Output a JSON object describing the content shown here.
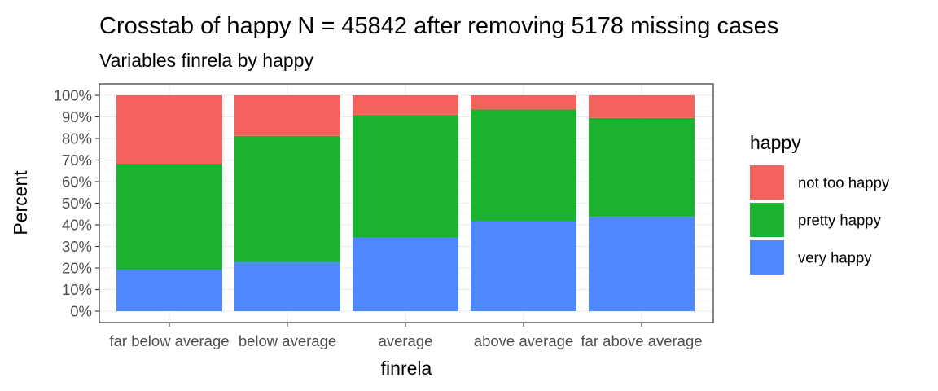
{
  "chart_data": {
    "type": "bar",
    "stacked": true,
    "title": "Crosstab of happy N = 45842 after removing 5178 missing cases",
    "subtitle": "Variables finrela by happy",
    "xlabel": "finrela",
    "ylabel": "Percent",
    "ylim": [
      0,
      100
    ],
    "y_ticks": [
      "0%",
      "10%",
      "20%",
      "30%",
      "40%",
      "50%",
      "60%",
      "70%",
      "80%",
      "90%",
      "100%"
    ],
    "categories": [
      "far below average",
      "below average",
      "average",
      "above average",
      "far above average"
    ],
    "series": [
      {
        "name": "very happy",
        "color": "#4f87ff",
        "values": [
          19.2,
          22.6,
          34.0,
          41.7,
          43.7
        ]
      },
      {
        "name": "pretty happy",
        "color": "#1ab22f",
        "values": [
          49.1,
          58.6,
          57.0,
          51.7,
          45.8
        ]
      },
      {
        "name": "not too happy",
        "color": "#f4625e",
        "values": [
          31.7,
          18.8,
          9.0,
          6.6,
          10.5
        ]
      }
    ],
    "legend": {
      "title": "happy",
      "position": "right",
      "order": [
        "not too happy",
        "pretty happy",
        "very happy"
      ]
    },
    "grid": true,
    "theme": "bw"
  }
}
